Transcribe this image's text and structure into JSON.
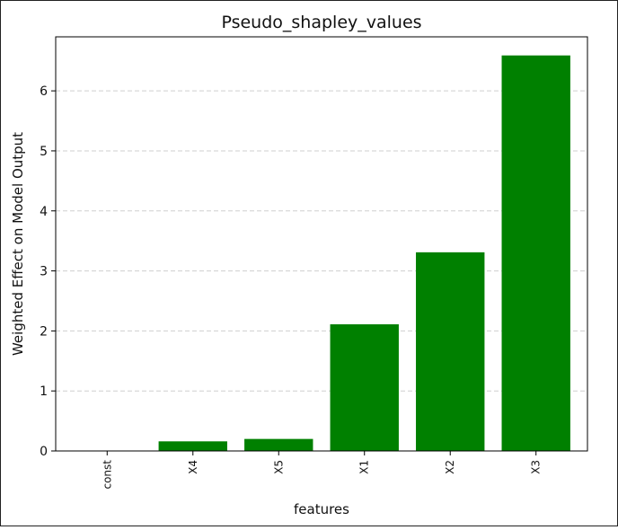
{
  "chart_data": {
    "type": "bar",
    "title": "Pseudo_shapley_values",
    "xlabel": "features",
    "ylabel": "Weighted Effect on Model Output",
    "categories": [
      "const",
      "X4",
      "X5",
      "X1",
      "X2",
      "X3"
    ],
    "values": [
      0.0,
      0.16,
      0.2,
      2.11,
      3.31,
      6.59
    ],
    "ylim": [
      0,
      6.9
    ],
    "yticks": [
      0,
      1,
      2,
      3,
      4,
      5,
      6
    ],
    "grid": "y-dashed",
    "bar_color": "#008000",
    "xtick_rotation": "vertical"
  }
}
